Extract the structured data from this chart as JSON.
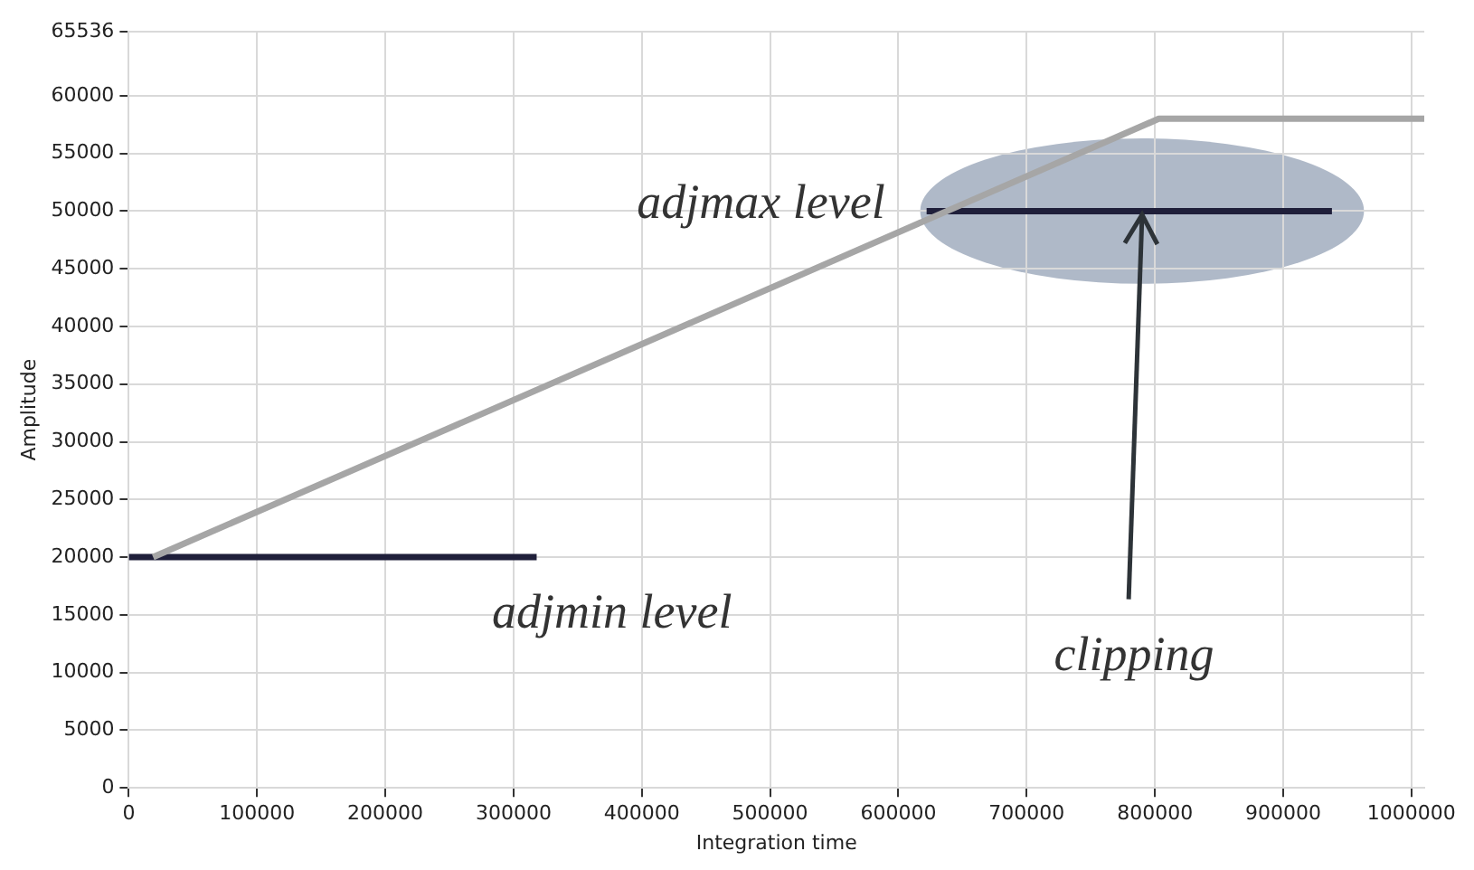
{
  "chart_data": {
    "type": "line",
    "xlabel": "Integration time",
    "ylabel": "Amplitude",
    "xlim": [
      0,
      1010000
    ],
    "xticks": [
      0,
      100000,
      200000,
      300000,
      400000,
      500000,
      600000,
      700000,
      800000,
      900000,
      1000000
    ],
    "ylim": [
      0,
      65536
    ],
    "yticks": [
      0,
      5000,
      10000,
      15000,
      20000,
      25000,
      30000,
      35000,
      40000,
      45000,
      50000,
      55000,
      60000,
      65536
    ],
    "series": [
      {
        "color": "#a6a6a6",
        "x": [
          19000,
          803000,
          1010000
        ],
        "values": [
          20000,
          58000,
          58000
        ]
      },
      {
        "color": "#1f1f3a",
        "x": [
          0,
          318000
        ],
        "values": [
          20000,
          20000
        ]
      },
      {
        "color": "#1f1f3a",
        "x": [
          622000,
          938000
        ],
        "values": [
          50000,
          50000
        ]
      }
    ],
    "annotations": [
      "adjmax level",
      "adjmin level",
      {
        "text": "clipping",
        "x": 790000,
        "y": 50000
      }
    ],
    "grid": true,
    "legend": false,
    "marker": "none",
    "line_style": "solid"
  }
}
